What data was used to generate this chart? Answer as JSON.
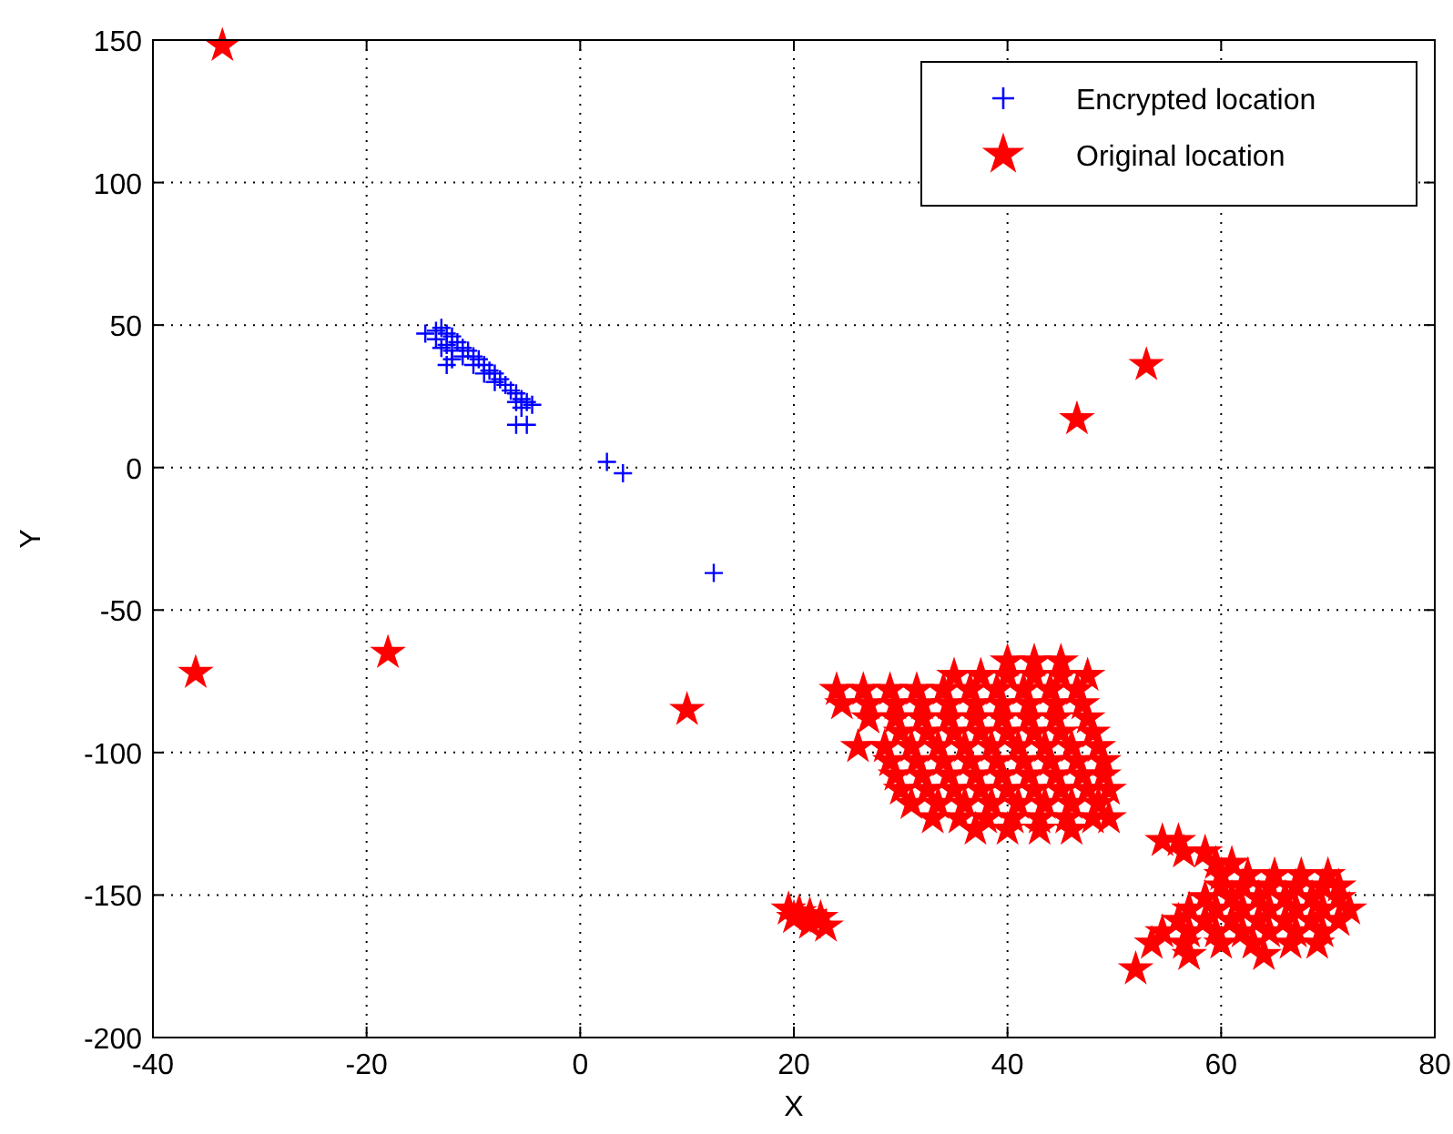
{
  "chart_data": {
    "type": "scatter",
    "xlabel": "X",
    "ylabel": "Y",
    "xlim": [
      -40,
      80
    ],
    "ylim": [
      -200,
      150
    ],
    "xticks": [
      -40,
      -20,
      0,
      20,
      40,
      60,
      80
    ],
    "yticks": [
      -200,
      -150,
      -100,
      -50,
      0,
      50,
      100,
      150
    ],
    "grid": true,
    "legend": "top right",
    "series": [
      {
        "name": "Encrypted location",
        "color": "#0000ff",
        "marker": "cross",
        "x": [
          -13.5,
          -13,
          -12.5,
          -12,
          -11.5,
          -11,
          -10.5,
          -10,
          -9.5,
          -9,
          -8.5,
          -8,
          -7.5,
          -7,
          -6.5,
          -6,
          -5.5,
          -5,
          -4.5,
          -12.5,
          -12,
          -11,
          -10,
          -9,
          -8,
          -6,
          -5.5,
          -13.5,
          -14.5,
          -13,
          -12.5,
          -12,
          -6,
          -5,
          2.5,
          4,
          12.5
        ],
        "values": [
          48,
          49,
          47,
          46,
          44,
          42,
          41,
          39,
          38,
          36,
          34,
          33,
          31,
          29,
          27,
          26,
          24,
          23,
          22,
          43,
          41,
          39,
          36,
          33,
          30,
          23,
          21,
          45,
          47,
          42,
          36,
          38,
          15,
          15,
          2,
          -2,
          -37
        ]
      },
      {
        "name": "Original location",
        "color": "#ff0000",
        "marker": "star",
        "x": [
          -33.5,
          -36,
          -18,
          10,
          46.5,
          53,
          19.5,
          20.5,
          21.5,
          22.5,
          20,
          21.5,
          23,
          40,
          42.5,
          45,
          35,
          37.5,
          40,
          42.5,
          45,
          47.5,
          24,
          26.5,
          29,
          31.5,
          34,
          36.5,
          39,
          41.5,
          44,
          46.5,
          24.5,
          27,
          29.5,
          32,
          34.5,
          37,
          39.5,
          42,
          44.5,
          47,
          27,
          29.5,
          32,
          34.5,
          37,
          39.5,
          42,
          44.5,
          47.5,
          30,
          32.5,
          35,
          37.5,
          40,
          42.5,
          45,
          48,
          26,
          28.5,
          31,
          33.5,
          36,
          38.5,
          41,
          43.5,
          46,
          48.5,
          29,
          31.5,
          34,
          36.5,
          39,
          41.5,
          44,
          46.5,
          49,
          29.5,
          32,
          34.5,
          37,
          39.5,
          42,
          44.5,
          47,
          49,
          30,
          32.5,
          35,
          37.5,
          40,
          42.5,
          45,
          47.5,
          49.5,
          31,
          33.5,
          36,
          38.5,
          41,
          43.5,
          46,
          48.5,
          33,
          35.5,
          38,
          40.5,
          43,
          45.5,
          48,
          49.5,
          37,
          40,
          43,
          46,
          54.5,
          56,
          56.5,
          58.5,
          59.5,
          61,
          60,
          62.5,
          65,
          67.5,
          70,
          60,
          62,
          64.5,
          67,
          69.5,
          71,
          58.5,
          61,
          63.5,
          66,
          68.5,
          71,
          57,
          59.5,
          62,
          64.5,
          67,
          69.5,
          72,
          56,
          58.5,
          61,
          63.5,
          66,
          68.5,
          71,
          54.5,
          57,
          59.5,
          62,
          64.5,
          67,
          69.5,
          53.5,
          56.5,
          60,
          63,
          66.5,
          69,
          57,
          64,
          52
        ],
        "values": [
          148,
          -72,
          -65,
          -85,
          17,
          36,
          -155,
          -156,
          -157,
          -158,
          -158,
          -160,
          -161,
          -68,
          -68,
          -68,
          -73,
          -73,
          -73,
          -73,
          -73,
          -73,
          -78,
          -78,
          -78,
          -78,
          -78,
          -78,
          -78,
          -78,
          -78,
          -78,
          -83,
          -83,
          -83,
          -83,
          -83,
          -83,
          -83,
          -83,
          -83,
          -83,
          -88,
          -88,
          -88,
          -88,
          -88,
          -88,
          -88,
          -88,
          -88,
          -93,
          -93,
          -93,
          -93,
          -93,
          -93,
          -93,
          -93,
          -98,
          -98,
          -98,
          -98,
          -98,
          -98,
          -98,
          -98,
          -98,
          -98,
          -103,
          -103,
          -103,
          -103,
          -103,
          -103,
          -103,
          -103,
          -103,
          -108,
          -108,
          -108,
          -108,
          -108,
          -108,
          -108,
          -108,
          -108,
          -113,
          -113,
          -113,
          -113,
          -113,
          -113,
          -113,
          -113,
          -113,
          -118,
          -118,
          -118,
          -118,
          -118,
          -118,
          -118,
          -118,
          -123,
          -123,
          -123,
          -123,
          -123,
          -123,
          -123,
          -123,
          -127,
          -127,
          -127,
          -127,
          -131,
          -131,
          -135,
          -135,
          -139,
          -139,
          -143,
          -143,
          -143,
          -143,
          -143,
          -147,
          -147,
          -147,
          -147,
          -147,
          -147,
          -151,
          -151,
          -151,
          -151,
          -151,
          -151,
          -155,
          -155,
          -155,
          -155,
          -155,
          -155,
          -155,
          -159,
          -159,
          -159,
          -159,
          -159,
          -159,
          -159,
          -163,
          -163,
          -163,
          -163,
          -163,
          -163,
          -163,
          -167,
          -167,
          -167,
          -167,
          -167,
          -167,
          -171,
          -171,
          -176
        ]
      }
    ]
  }
}
